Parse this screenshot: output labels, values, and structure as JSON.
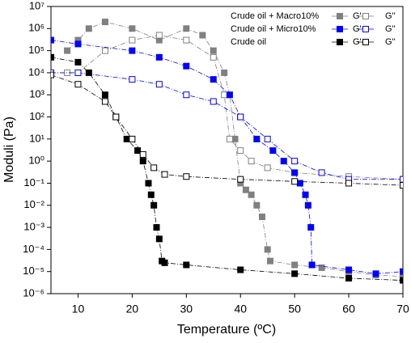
{
  "chart_data": {
    "type": "scatter",
    "ylog": true,
    "x_label": "Temperature (ºC)",
    "y_label": "Moduli (Pa)",
    "xlim": [
      5,
      70
    ],
    "xticks": [
      10,
      20,
      30,
      40,
      50,
      60,
      70
    ],
    "ylim": [
      1e-06,
      10000000
    ],
    "yticks": [
      {
        "value": 1e-06,
        "label": "10⁻⁶"
      },
      {
        "value": 1e-05,
        "label": "10⁻⁵"
      },
      {
        "value": 0.0001,
        "label": "10⁻⁴"
      },
      {
        "value": 0.001,
        "label": "10⁻³"
      },
      {
        "value": 0.01,
        "label": "10⁻²"
      },
      {
        "value": 0.1,
        "label": "10⁻¹"
      },
      {
        "value": 1,
        "label": "10⁰"
      },
      {
        "value": 10,
        "label": "10¹"
      },
      {
        "value": 100,
        "label": "10²"
      },
      {
        "value": 1000,
        "label": "10³"
      },
      {
        "value": 10000,
        "label": "10⁴"
      },
      {
        "value": 100000,
        "label": "10⁵"
      },
      {
        "value": 1000000,
        "label": "10⁶"
      },
      {
        "value": 10000000,
        "label": "10⁷"
      }
    ],
    "legend": "upper right",
    "series": [
      {
        "group": "Crude oil + Macro10%",
        "name": "G'",
        "color": "#808080",
        "filled": true,
        "x": [
          8,
          10,
          12,
          15,
          20,
          25,
          30,
          33,
          35,
          37,
          38,
          39,
          40,
          41,
          42,
          43,
          44,
          45,
          45.5,
          50,
          55,
          60,
          65,
          70
        ],
        "values": [
          100000,
          300000,
          1000000,
          2000000,
          1000000,
          300000,
          1000000,
          500000,
          100000,
          10000,
          1000,
          10,
          0.1,
          0.05,
          0.03,
          0.01,
          0.003,
          0.0001,
          3e-05,
          2e-05,
          1.5e-05,
          1e-05,
          7e-06,
          6e-06
        ]
      },
      {
        "name": "G''",
        "color": "#808080",
        "filled": false,
        "x": [
          8,
          10,
          15,
          20,
          25,
          30,
          35,
          37,
          38,
          40,
          42,
          45,
          50,
          60,
          70
        ],
        "values": [
          10000,
          10000,
          100000,
          300000,
          500000,
          300000,
          50000,
          1000,
          10,
          3,
          1,
          0.5,
          0.3,
          0.2,
          0.15
        ]
      },
      {
        "group": "Crude oil + Micro10%",
        "name": "G'",
        "color": "#0000ff",
        "filled": true,
        "x": [
          5,
          10,
          20,
          25,
          30,
          35,
          38,
          40,
          43,
          46,
          48,
          50,
          51,
          52,
          52.5,
          53,
          53.2,
          60,
          65,
          70
        ],
        "values": [
          300000,
          200000,
          100000,
          50000,
          20000,
          5000,
          1000,
          100,
          10,
          3,
          1,
          0.3,
          0.1,
          0.03,
          0.01,
          0.001,
          2e-05,
          1.2e-05,
          8e-06,
          1e-05
        ]
      },
      {
        "name": "G''",
        "color": "#0000ff",
        "filled": false,
        "x": [
          5,
          10,
          20,
          25,
          30,
          35,
          40,
          45,
          50,
          55,
          60,
          70
        ],
        "values": [
          10000,
          10000,
          5000,
          3000,
          1000,
          500,
          100,
          10,
          1,
          0.3,
          0.15,
          0.15
        ]
      },
      {
        "group": "Crude oil",
        "name": "G'",
        "color": "#000000",
        "filled": true,
        "x": [
          5,
          10,
          12,
          15,
          17,
          19,
          21,
          22,
          23,
          23.5,
          24,
          24.5,
          25,
          25.5,
          26,
          30,
          40,
          50,
          60,
          70
        ],
        "values": [
          50000,
          30000,
          10000,
          1000,
          100,
          10,
          3,
          1,
          0.1,
          0.03,
          0.01,
          0.001,
          0.0003,
          3e-05,
          2.5e-05,
          2e-05,
          1.2e-05,
          8e-06,
          5e-06,
          4e-06
        ]
      },
      {
        "name": "G''",
        "color": "#000000",
        "filled": false,
        "x": [
          5,
          10,
          15,
          17,
          20,
          22,
          24,
          26,
          30,
          40,
          50,
          60,
          70
        ],
        "values": [
          8000,
          3000,
          500,
          100,
          10,
          2,
          0.5,
          0.25,
          0.2,
          0.15,
          0.12,
          0.1,
          0.08
        ]
      }
    ]
  }
}
